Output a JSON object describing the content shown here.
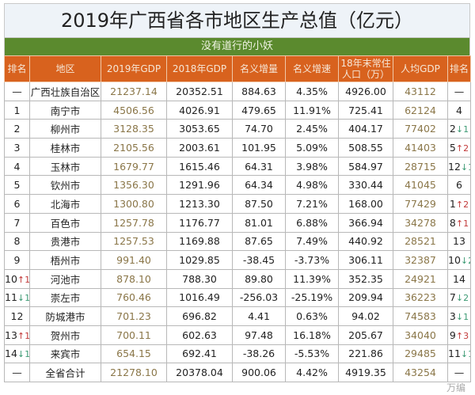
{
  "title": "2019年广西省各市地区生产总值（亿元）",
  "subtitle": "没有道行的小妖",
  "headers": [
    "排名",
    "地区",
    "2019年GDP",
    "2018年GDP",
    "名义增量",
    "名义增速",
    "18年末常住人口（万）",
    "人均GDP",
    "排名"
  ],
  "rows": [
    {
      "rank": "—",
      "rank_change": "",
      "dir": "",
      "region": "广西壮族自治区",
      "gdp2019": "21237.14",
      "gdp2018": "20352.51",
      "inc": "884.63",
      "rate": "4.35%",
      "pop": "4926.00",
      "pc": "43112",
      "pc_rank": "—",
      "pc_change": "",
      "pc_dir": ""
    },
    {
      "rank": "1",
      "rank_change": "",
      "dir": "",
      "region": "南宁市",
      "gdp2019": "4506.56",
      "gdp2018": "4026.91",
      "inc": "479.65",
      "rate": "11.91%",
      "pop": "725.41",
      "pc": "62124",
      "pc_rank": "4",
      "pc_change": "",
      "pc_dir": ""
    },
    {
      "rank": "2",
      "rank_change": "",
      "dir": "",
      "region": "柳州市",
      "gdp2019": "3128.35",
      "gdp2018": "3053.65",
      "inc": "74.70",
      "rate": "2.45%",
      "pop": "404.17",
      "pc": "77402",
      "pc_rank": "2",
      "pc_change": "↓1",
      "pc_dir": "dn"
    },
    {
      "rank": "3",
      "rank_change": "",
      "dir": "",
      "region": "桂林市",
      "gdp2019": "2105.56",
      "gdp2018": "2003.61",
      "inc": "101.95",
      "rate": "5.09%",
      "pop": "508.55",
      "pc": "41403",
      "pc_rank": "5",
      "pc_change": "↑2",
      "pc_dir": "up"
    },
    {
      "rank": "4",
      "rank_change": "",
      "dir": "",
      "region": "玉林市",
      "gdp2019": "1679.77",
      "gdp2018": "1615.46",
      "inc": "64.31",
      "rate": "3.98%",
      "pop": "584.97",
      "pc": "28715",
      "pc_rank": "12",
      "pc_change": "↓1",
      "pc_dir": "dn"
    },
    {
      "rank": "5",
      "rank_change": "",
      "dir": "",
      "region": "钦州市",
      "gdp2019": "1356.30",
      "gdp2018": "1291.96",
      "inc": "64.34",
      "rate": "4.98%",
      "pop": "330.44",
      "pc": "41045",
      "pc_rank": "6",
      "pc_change": "",
      "pc_dir": ""
    },
    {
      "rank": "6",
      "rank_change": "",
      "dir": "",
      "region": "北海市",
      "gdp2019": "1300.80",
      "gdp2018": "1213.30",
      "inc": "87.50",
      "rate": "7.21%",
      "pop": "168.00",
      "pc": "77429",
      "pc_rank": "1",
      "pc_change": "↑2",
      "pc_dir": "up"
    },
    {
      "rank": "7",
      "rank_change": "",
      "dir": "",
      "region": "百色市",
      "gdp2019": "1257.78",
      "gdp2018": "1176.77",
      "inc": "81.01",
      "rate": "6.88%",
      "pop": "366.94",
      "pc": "34278",
      "pc_rank": "8",
      "pc_change": "↑1",
      "pc_dir": "up"
    },
    {
      "rank": "8",
      "rank_change": "",
      "dir": "",
      "region": "贵港市",
      "gdp2019": "1257.53",
      "gdp2018": "1169.88",
      "inc": "87.65",
      "rate": "7.49%",
      "pop": "440.92",
      "pc": "28521",
      "pc_rank": "13",
      "pc_change": "",
      "pc_dir": ""
    },
    {
      "rank": "9",
      "rank_change": "",
      "dir": "",
      "region": "梧州市",
      "gdp2019": "991.40",
      "gdp2018": "1029.85",
      "inc": "-38.45",
      "rate": "-3.73%",
      "pop": "306.11",
      "pc": "32387",
      "pc_rank": "10",
      "pc_change": "↓2",
      "pc_dir": "dn"
    },
    {
      "rank": "10",
      "rank_change": "↑1",
      "dir": "up",
      "region": "河池市",
      "gdp2019": "878.10",
      "gdp2018": "788.30",
      "inc": "89.80",
      "rate": "11.39%",
      "pop": "352.35",
      "pc": "24921",
      "pc_rank": "14",
      "pc_change": "",
      "pc_dir": ""
    },
    {
      "rank": "11",
      "rank_change": "↓1",
      "dir": "dn",
      "region": "崇左市",
      "gdp2019": "760.46",
      "gdp2018": "1016.49",
      "inc": "-256.03",
      "rate": "-25.19%",
      "pop": "209.94",
      "pc": "36223",
      "pc_rank": "7",
      "pc_change": "↓2",
      "pc_dir": "dn"
    },
    {
      "rank": "12",
      "rank_change": "",
      "dir": "",
      "region": "防城港市",
      "gdp2019": "701.23",
      "gdp2018": "696.82",
      "inc": "4.41",
      "rate": "0.63%",
      "pop": "94.02",
      "pc": "74583",
      "pc_rank": "3",
      "pc_change": "↓1",
      "pc_dir": "dn"
    },
    {
      "rank": "13",
      "rank_change": "↑1",
      "dir": "up",
      "region": "贺州市",
      "gdp2019": "700.11",
      "gdp2018": "602.63",
      "inc": "97.48",
      "rate": "16.18%",
      "pop": "205.67",
      "pc": "34040",
      "pc_rank": "9",
      "pc_change": "↑3",
      "pc_dir": "up"
    },
    {
      "rank": "14",
      "rank_change": "↓1",
      "dir": "dn",
      "region": "来宾市",
      "gdp2019": "654.15",
      "gdp2018": "692.41",
      "inc": "-38.26",
      "rate": "-5.53%",
      "pop": "221.86",
      "pc": "29485",
      "pc_rank": "11",
      "pc_change": "↓1",
      "pc_dir": "dn"
    },
    {
      "rank": "—",
      "rank_change": "",
      "dir": "",
      "region": "全省合计",
      "gdp2019": "21278.10",
      "gdp2018": "20378.04",
      "inc": "900.06",
      "rate": "4.42%",
      "pop": "4919.35",
      "pc": "43254",
      "pc_rank": "—",
      "pc_change": "",
      "pc_dir": ""
    }
  ],
  "watermark": "万编",
  "colors": {
    "header": "#d8621e",
    "subtitle_bar": "#5b8a2e",
    "up": "#c23a3a",
    "down": "#3d9b74"
  }
}
